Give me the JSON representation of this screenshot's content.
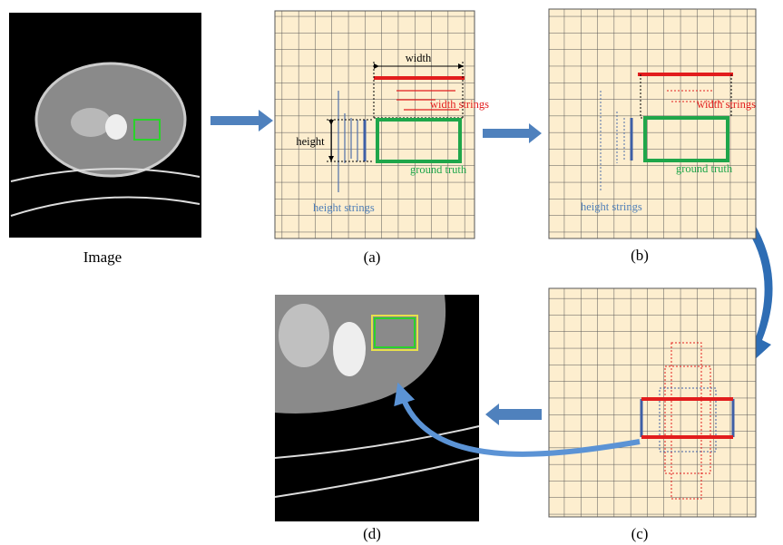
{
  "image": {
    "caption": "Image"
  },
  "panel_a": {
    "caption": "(a)",
    "width": "width",
    "height": "height",
    "width_strings": "width strings",
    "height_strings": "height strings",
    "ground_truth": "ground truth"
  },
  "panel_b": {
    "caption": "(b)",
    "width_strings": "width strings",
    "height_strings": "height strings",
    "ground_truth": "ground truth"
  },
  "panel_c": {
    "caption": "(c)"
  },
  "panel_d": {
    "caption": "(d)"
  }
}
